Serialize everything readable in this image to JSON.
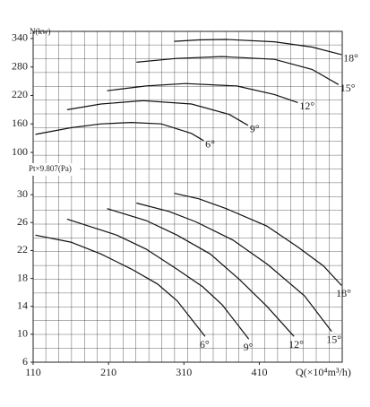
{
  "chart_data": [
    {
      "type": "line",
      "y_label": "N(kw)",
      "xlim": [
        110,
        520
      ],
      "ylim": [
        100,
        355
      ],
      "yticks": [
        100,
        160,
        220,
        280,
        340
      ],
      "series": [
        {
          "name": "6°",
          "color": "#111",
          "x": [
            113,
            160,
            200,
            240,
            280,
            320,
            336
          ],
          "values": [
            138,
            152,
            160,
            163,
            160,
            140,
            125
          ]
        },
        {
          "name": "9°",
          "color": "#111",
          "x": [
            155,
            200,
            256,
            320,
            370,
            395
          ],
          "values": [
            190,
            202,
            209,
            202,
            180,
            157
          ]
        },
        {
          "name": "12°",
          "color": "#111",
          "x": [
            208,
            260,
            312,
            380,
            430,
            461
          ],
          "values": [
            230,
            240,
            245,
            240,
            222,
            205
          ]
        },
        {
          "name": "15°",
          "color": "#111",
          "x": [
            247,
            300,
            360,
            430,
            480,
            515
          ],
          "values": [
            290,
            298,
            302,
            296,
            275,
            243
          ]
        },
        {
          "name": "18°",
          "color": "#111",
          "x": [
            297,
            330,
            366,
            430,
            480,
            519
          ],
          "values": [
            334,
            337,
            338,
            333,
            322,
            306
          ]
        }
      ]
    },
    {
      "type": "line",
      "y_label": "Pt×9.807(Pa)",
      "x_label": "Q(×10⁴m³/h)",
      "xlim": [
        110,
        520
      ],
      "xticks": [
        110,
        210,
        310,
        410
      ],
      "ylim": [
        6,
        34
      ],
      "yticks": [
        6,
        10,
        14,
        18,
        22,
        26,
        30
      ],
      "series": [
        {
          "name": "6°",
          "color": "#111",
          "x": [
            113,
            160,
            200,
            241,
            275,
            301,
            338
          ],
          "values": [
            24.2,
            23.2,
            21.5,
            19.3,
            17.2,
            14.8,
            9.7
          ]
        },
        {
          "name": "9°",
          "color": "#111",
          "x": [
            155,
            221,
            260,
            301,
            335,
            361,
            396
          ],
          "values": [
            26.5,
            24.2,
            22.2,
            19.3,
            16.8,
            14.2,
            9.3
          ]
        },
        {
          "name": "12°",
          "color": "#111",
          "x": [
            208,
            260,
            301,
            345,
            384,
            420,
            456
          ],
          "values": [
            28,
            26.3,
            24.2,
            21.5,
            17.8,
            14,
            9.7
          ]
        },
        {
          "name": "15°",
          "color": "#111",
          "x": [
            247,
            290,
            326,
            375,
            421,
            470,
            506
          ],
          "values": [
            28.8,
            27.6,
            26.1,
            23.5,
            20,
            15.5,
            10.4
          ]
        },
        {
          "name": "18°",
          "color": "#111",
          "x": [
            297,
            330,
            366,
            420,
            461,
            495,
            519
          ],
          "values": [
            30.2,
            29.4,
            28,
            25.5,
            22.5,
            19.8,
            17
          ]
        }
      ]
    }
  ]
}
